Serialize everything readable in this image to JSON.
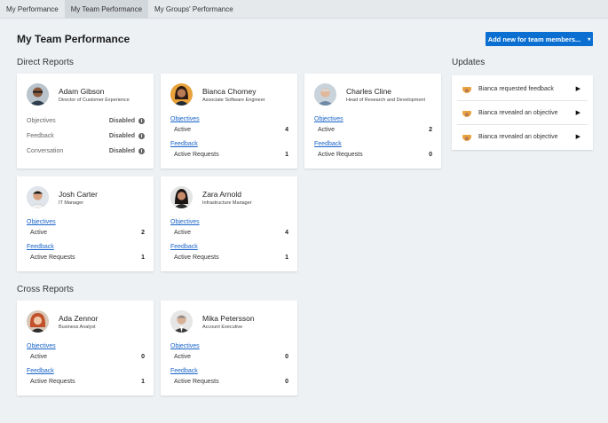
{
  "tabs": [
    {
      "label": "My Performance"
    },
    {
      "label": "My Team Performance"
    },
    {
      "label": "My Groups' Performance"
    }
  ],
  "page_title": "My Team Performance",
  "add_button": {
    "label": "Add new for team members...",
    "caret": "▾"
  },
  "sections": {
    "direct": "Direct Reports",
    "cross": "Cross Reports",
    "updates": "Updates"
  },
  "labels": {
    "objectives": "Objectives",
    "feedback": "Feedback",
    "conversation": "Conversation",
    "active": "Active",
    "active_requests": "Active Requests",
    "disabled": "Disabled",
    "info": "i"
  },
  "people": {
    "adam": {
      "name": "Adam Gibson",
      "role": "Director of Customer Experience"
    },
    "bianca": {
      "name": "Bianca Chorney",
      "role": "Associate Software Engineer",
      "objectives_active": "4",
      "feedback_requests": "1"
    },
    "charles": {
      "name": "Charles Cline",
      "role": "Head of Research and Development",
      "objectives_active": "2",
      "feedback_requests": "0"
    },
    "josh": {
      "name": "Josh Carter",
      "role": "IT Manager",
      "objectives_active": "2",
      "feedback_requests": "1"
    },
    "zara": {
      "name": "Zara Arnold",
      "role": "Infrastructure Manager",
      "objectives_active": "4",
      "feedback_requests": "1"
    },
    "ada": {
      "name": "Ada Zennor",
      "role": "Business Analyst",
      "objectives_active": "0",
      "feedback_requests": "1"
    },
    "mika": {
      "name": "Mika Petersson",
      "role": "Account Executive",
      "objectives_active": "0",
      "feedback_requests": "0"
    }
  },
  "updates": [
    {
      "text": "Bianca requested feedback"
    },
    {
      "text": "Bianca revealed an objective"
    },
    {
      "text": "Bianca revealed an objective"
    }
  ],
  "icons": {
    "arrow": "▶"
  },
  "colors": {
    "accent": "#0a6fd1",
    "link": "#1a64c8"
  }
}
